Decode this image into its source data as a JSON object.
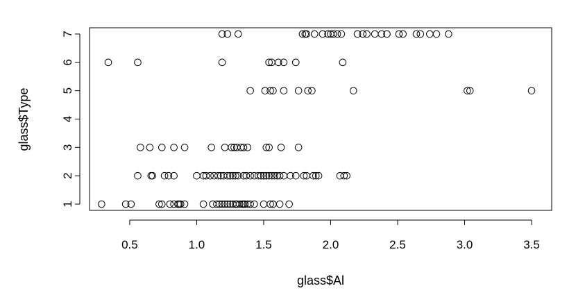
{
  "chart_data": {
    "type": "scatter",
    "title": "",
    "xlabel": "glass$Al",
    "ylabel": "glass$Type",
    "xlim": [
      0.2,
      3.65
    ],
    "ylim": [
      0.78,
      7.22
    ],
    "x_ticks": [
      "0.5",
      "1.0",
      "1.5",
      "2.0",
      "2.5",
      "3.0",
      "3.5"
    ],
    "y_ticks": [
      "1",
      "2",
      "3",
      "4",
      "5",
      "6",
      "7"
    ],
    "x_tick_values": [
      0.5,
      1.0,
      1.5,
      2.0,
      2.5,
      3.0,
      3.5
    ],
    "y_tick_values": [
      1,
      2,
      3,
      4,
      5,
      6,
      7
    ],
    "grid": false,
    "legend": "none",
    "marker_color": "#000000",
    "series": [
      {
        "points": [
          [
            0.29,
            1
          ],
          [
            0.47,
            1
          ],
          [
            0.51,
            1
          ],
          [
            0.72,
            1
          ],
          [
            0.74,
            1
          ],
          [
            0.8,
            1
          ],
          [
            0.83,
            1
          ],
          [
            0.86,
            1
          ],
          [
            0.87,
            1
          ],
          [
            0.88,
            1
          ],
          [
            0.91,
            1
          ],
          [
            1.05,
            1
          ],
          [
            1.12,
            1
          ],
          [
            1.15,
            1
          ],
          [
            1.17,
            1
          ],
          [
            1.19,
            1
          ],
          [
            1.21,
            1
          ],
          [
            1.23,
            1
          ],
          [
            1.25,
            1
          ],
          [
            1.27,
            1
          ],
          [
            1.29,
            1
          ],
          [
            1.3,
            1
          ],
          [
            1.32,
            1
          ],
          [
            1.34,
            1
          ],
          [
            1.35,
            1
          ],
          [
            1.36,
            1
          ],
          [
            1.38,
            1
          ],
          [
            1.4,
            1
          ],
          [
            1.43,
            1
          ],
          [
            1.5,
            1
          ],
          [
            1.55,
            1
          ],
          [
            1.57,
            1
          ],
          [
            1.62,
            1
          ],
          [
            1.69,
            1
          ],
          [
            0.56,
            2
          ],
          [
            0.66,
            2
          ],
          [
            0.67,
            2
          ],
          [
            0.76,
            2
          ],
          [
            0.79,
            2
          ],
          [
            0.83,
            2
          ],
          [
            1.0,
            2
          ],
          [
            1.05,
            2
          ],
          [
            1.07,
            2
          ],
          [
            1.1,
            2
          ],
          [
            1.13,
            2
          ],
          [
            1.16,
            2
          ],
          [
            1.18,
            2
          ],
          [
            1.2,
            2
          ],
          [
            1.23,
            2
          ],
          [
            1.25,
            2
          ],
          [
            1.27,
            2
          ],
          [
            1.29,
            2
          ],
          [
            1.31,
            2
          ],
          [
            1.35,
            2
          ],
          [
            1.37,
            2
          ],
          [
            1.4,
            2
          ],
          [
            1.43,
            2
          ],
          [
            1.46,
            2
          ],
          [
            1.48,
            2
          ],
          [
            1.5,
            2
          ],
          [
            1.52,
            2
          ],
          [
            1.54,
            2
          ],
          [
            1.56,
            2
          ],
          [
            1.58,
            2
          ],
          [
            1.6,
            2
          ],
          [
            1.62,
            2
          ],
          [
            1.65,
            2
          ],
          [
            1.7,
            2
          ],
          [
            1.74,
            2
          ],
          [
            1.8,
            2
          ],
          [
            1.82,
            2
          ],
          [
            1.87,
            2
          ],
          [
            1.89,
            2
          ],
          [
            1.91,
            2
          ],
          [
            2.07,
            2
          ],
          [
            2.1,
            2
          ],
          [
            2.12,
            2
          ],
          [
            0.58,
            3
          ],
          [
            0.65,
            3
          ],
          [
            0.74,
            3
          ],
          [
            0.83,
            3
          ],
          [
            0.91,
            3
          ],
          [
            1.11,
            3
          ],
          [
            1.21,
            3
          ],
          [
            1.26,
            3
          ],
          [
            1.28,
            3
          ],
          [
            1.3,
            3
          ],
          [
            1.33,
            3
          ],
          [
            1.35,
            3
          ],
          [
            1.38,
            3
          ],
          [
            1.52,
            3
          ],
          [
            1.54,
            3
          ],
          [
            1.63,
            3
          ],
          [
            1.76,
            3
          ],
          [
            1.4,
            5
          ],
          [
            1.51,
            5
          ],
          [
            1.55,
            5
          ],
          [
            1.57,
            5
          ],
          [
            1.65,
            5
          ],
          [
            1.76,
            5
          ],
          [
            1.83,
            5
          ],
          [
            1.86,
            5
          ],
          [
            2.17,
            5
          ],
          [
            3.02,
            5
          ],
          [
            3.04,
            5
          ],
          [
            3.5,
            5
          ],
          [
            0.34,
            6
          ],
          [
            0.56,
            6
          ],
          [
            1.19,
            6
          ],
          [
            1.54,
            6
          ],
          [
            1.56,
            6
          ],
          [
            1.61,
            6
          ],
          [
            1.65,
            6
          ],
          [
            1.74,
            6
          ],
          [
            2.09,
            6
          ],
          [
            1.19,
            7
          ],
          [
            1.23,
            7
          ],
          [
            1.31,
            7
          ],
          [
            1.79,
            7
          ],
          [
            1.81,
            7
          ],
          [
            1.82,
            7
          ],
          [
            1.88,
            7
          ],
          [
            1.94,
            7
          ],
          [
            1.98,
            7
          ],
          [
            2.0,
            7
          ],
          [
            2.02,
            7
          ],
          [
            2.05,
            7
          ],
          [
            2.08,
            7
          ],
          [
            2.2,
            7
          ],
          [
            2.24,
            7
          ],
          [
            2.27,
            7
          ],
          [
            2.33,
            7
          ],
          [
            2.38,
            7
          ],
          [
            2.42,
            7
          ],
          [
            2.51,
            7
          ],
          [
            2.54,
            7
          ],
          [
            2.64,
            7
          ],
          [
            2.67,
            7
          ],
          [
            2.74,
            7
          ],
          [
            2.79,
            7
          ],
          [
            2.88,
            7
          ]
        ]
      }
    ]
  }
}
